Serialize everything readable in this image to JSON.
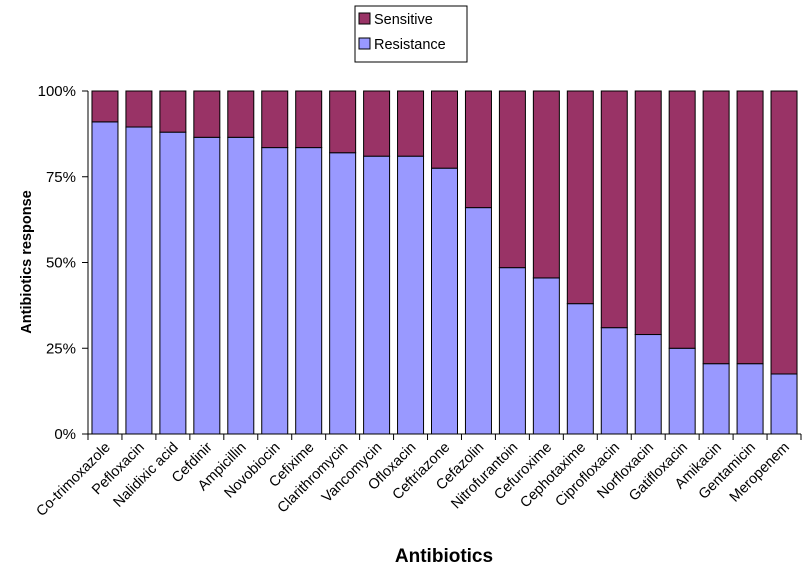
{
  "chart_data": {
    "type": "bar",
    "stacked": true,
    "percent": true,
    "categories": [
      "Co-trimoxazole",
      "Pefloxacin",
      "Nalidixic acid",
      "Cefdinir",
      "Ampicillin",
      "Novobiocin",
      "Cefixime",
      "Clarithromycin",
      "Vancomycin",
      "Ofloxacin",
      "Ceftriazone",
      "Cefazolin",
      "Nitrofurantoin",
      "Cefuroxime",
      "Cephotaxime",
      "Ciprofloxacin",
      "Norfloxacin",
      "Gatifloxacin",
      "Amikacin",
      "Gentamicin",
      "Meropenem"
    ],
    "series": [
      {
        "name": "Resistance",
        "color": "#9999ff",
        "values": [
          91,
          89.5,
          88,
          86.5,
          86.5,
          83.5,
          83.5,
          82,
          81,
          81,
          77.5,
          66,
          48.5,
          45.5,
          38,
          31,
          29,
          25,
          20.5,
          20.5,
          17.5
        ]
      },
      {
        "name": "Sensitive",
        "color": "#993366",
        "values": [
          9,
          10.5,
          12,
          13.5,
          13.5,
          16.5,
          16.5,
          18,
          19,
          19,
          22.5,
          34,
          51.5,
          54.5,
          62,
          69,
          71,
          75,
          79.5,
          79.5,
          82.5
        ]
      }
    ],
    "legend": {
      "position": "top-center",
      "order": [
        "Sensitive",
        "Resistance"
      ]
    },
    "xlabel": "Antibiotics",
    "ylabel": "Antibiotics response",
    "yticks": [
      "0%",
      "25%",
      "50%",
      "75%",
      "100%"
    ],
    "ylim": [
      0,
      100
    ],
    "grid": false
  }
}
